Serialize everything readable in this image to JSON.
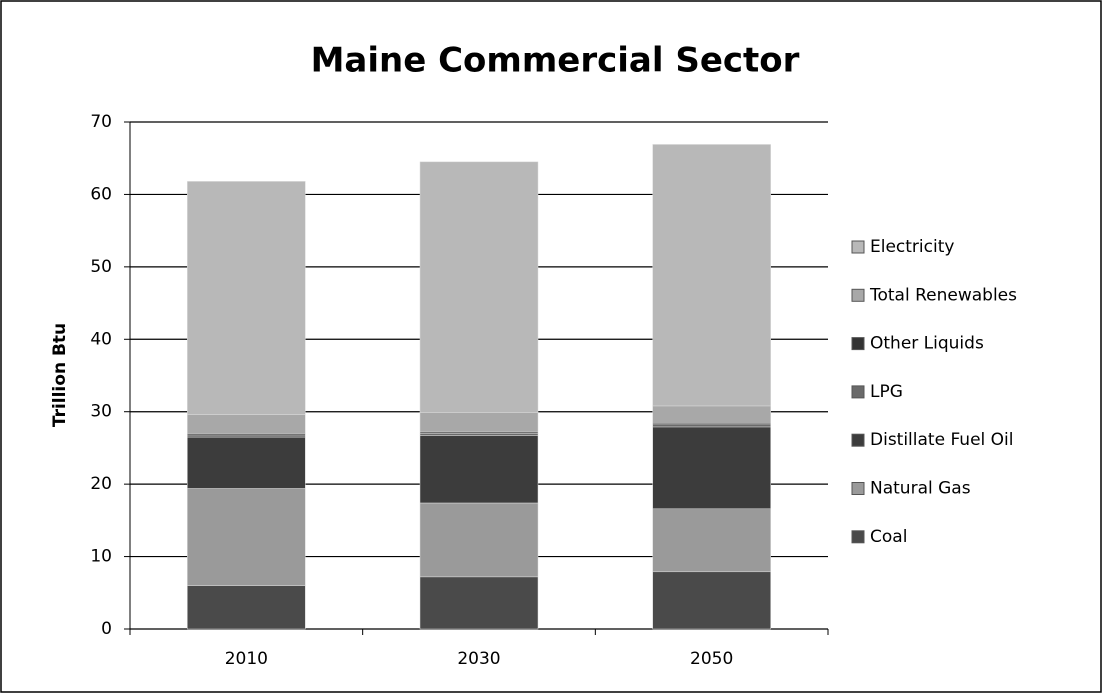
{
  "chart_data": {
    "type": "stacked-bar",
    "title": "Maine Commercial Sector",
    "y_label": "Trillion Btu",
    "categories": [
      "2010",
      "2030",
      "2050"
    ],
    "series": [
      {
        "name": "Coal",
        "color": "#4a4a4a",
        "values": [
          6.0,
          7.2,
          7.9
        ]
      },
      {
        "name": "Natural Gas",
        "color": "#9a9a9a",
        "values": [
          13.4,
          10.2,
          8.7
        ]
      },
      {
        "name": "Distillate  Fuel Oil",
        "color": "#3c3c3c",
        "values": [
          7.1,
          9.3,
          11.3
        ]
      },
      {
        "name": "LPG",
        "color": "#6a6a6a",
        "values": [
          0.3,
          0.3,
          0.3
        ]
      },
      {
        "name": "Other Liquids",
        "color": "#333333",
        "values": [
          0.2,
          0.2,
          0.2
        ]
      },
      {
        "name": "Total Renewables",
        "color": "#a8a8a8",
        "values": [
          2.6,
          2.7,
          2.4
        ]
      },
      {
        "name": "Electricity",
        "color": "#b8b8b8",
        "values": [
          32.2,
          34.6,
          36.1
        ]
      }
    ],
    "ylim": [
      0,
      70
    ],
    "yticks": [
      0,
      10,
      20,
      30,
      40,
      50,
      60,
      70
    ],
    "grid": true,
    "legend": "right"
  }
}
